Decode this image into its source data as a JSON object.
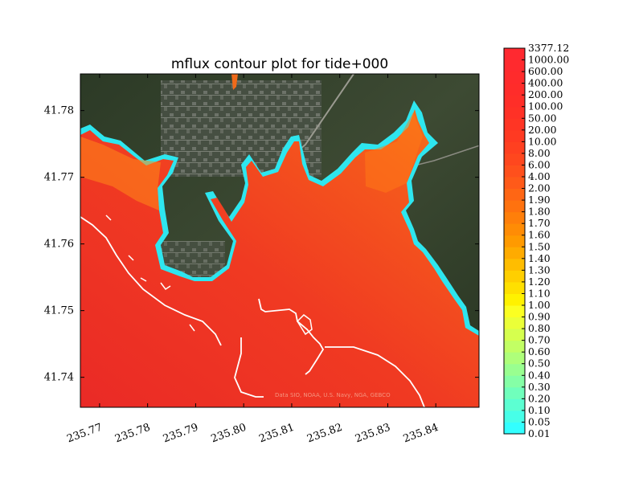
{
  "chart_data": {
    "type": "heatmap",
    "title": "mflux contour plot for tide+000",
    "xlabel": "",
    "ylabel": "",
    "xlim": [
      235.766,
      235.849
    ],
    "ylim": [
      41.7355,
      41.7855
    ],
    "x_ticks": [
      "235.77",
      "235.78",
      "235.79",
      "235.80",
      "235.81",
      "235.82",
      "235.83",
      "235.84"
    ],
    "x_tick_values": [
      235.77,
      235.78,
      235.79,
      235.8,
      235.81,
      235.82,
      235.83,
      235.84
    ],
    "y_ticks": [
      "41.74",
      "41.75",
      "41.76",
      "41.77",
      "41.78"
    ],
    "y_tick_values": [
      41.74,
      41.75,
      41.76,
      41.77,
      41.78
    ],
    "basemap_attribution": "Data SIO, NOAA, U.S. Navy, NGA, GEBCO",
    "colorbar": {
      "levels": [
        "0.01",
        "0.05",
        "0.10",
        "0.20",
        "0.30",
        "0.40",
        "0.50",
        "0.60",
        "0.70",
        "0.80",
        "0.90",
        "1.00",
        "1.10",
        "1.20",
        "1.30",
        "1.40",
        "1.50",
        "1.60",
        "1.70",
        "1.80",
        "1.90",
        "2.00",
        "4.00",
        "6.00",
        "8.00",
        "10.00",
        "20.00",
        "50.00",
        "100.00",
        "200.00",
        "400.00",
        "600.00",
        "1000.00",
        "3377.12"
      ],
      "colors": [
        "#33ffff",
        "#47ffe8",
        "#5cffd2",
        "#70ffbc",
        "#85ffa6",
        "#99ff90",
        "#aeff7a",
        "#c2ff64",
        "#d6ff4e",
        "#ebff38",
        "#fbff22",
        "#fff200",
        "#ffe000",
        "#ffcf00",
        "#ffbd00",
        "#ffab00",
        "#ff9a00",
        "#ff8c05",
        "#ff7f0a",
        "#ff720f",
        "#ff6614",
        "#ff5a19",
        "#ff501c",
        "#ff471e",
        "#ff4020",
        "#ff3a22",
        "#ff3524",
        "#ff3126",
        "#ff2e28",
        "#ff2c2a",
        "#ff2b2c",
        "#ff2a2e",
        "#ff2930"
      ]
    }
  }
}
